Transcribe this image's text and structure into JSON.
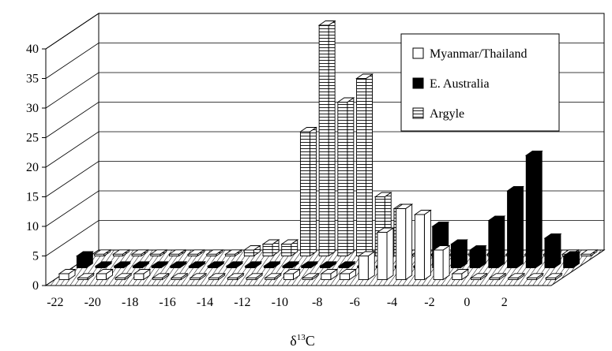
{
  "chart_data": {
    "type": "bar",
    "subtype": "3d-grouped-column",
    "categories": [
      "-22",
      "-21",
      "-20",
      "-19",
      "-18",
      "-17",
      "-16",
      "-15",
      "-14",
      "-13",
      "-12",
      "-11",
      "-10",
      "-9",
      "-8",
      "-7",
      "-6",
      "-5",
      "-4",
      "-3",
      "-2",
      "-1",
      "0",
      "1",
      "2",
      "3",
      "4"
    ],
    "x_tick_labels": [
      "-22",
      "-20",
      "-18",
      "-16",
      "-14",
      "-12",
      "-10",
      "-8",
      "-6",
      "-4",
      "-2",
      "0",
      "2"
    ],
    "series": [
      {
        "name": "Myanmar/Thailand",
        "pattern": "white",
        "values": [
          1,
          0,
          1,
          0,
          1,
          0,
          0,
          0,
          0,
          0,
          0,
          0,
          1,
          0,
          1,
          1,
          4,
          8,
          12,
          11,
          5,
          1,
          0,
          0,
          0,
          0,
          0
        ]
      },
      {
        "name": "E. Australia",
        "pattern": "black",
        "values": [
          2,
          0,
          0,
          0,
          0,
          0,
          0,
          0,
          0,
          0,
          0,
          0,
          0,
          0,
          0,
          0,
          0,
          0,
          0,
          7,
          4,
          3,
          8,
          13,
          19,
          5,
          2
        ]
      },
      {
        "name": "Argyle",
        "pattern": "horizontal-hatch",
        "values": [
          0,
          0,
          0,
          0,
          0,
          0,
          0,
          0,
          1,
          2,
          2,
          21,
          39,
          26,
          30,
          10,
          8,
          0,
          0,
          0,
          0,
          0,
          0,
          0,
          0,
          0,
          0
        ]
      }
    ],
    "yticks": [
      0,
      5,
      10,
      15,
      20,
      25,
      30,
      35,
      40
    ],
    "ylim": [
      0,
      40
    ],
    "xlabel": "δ13C",
    "xlabel_main": "δ",
    "xlabel_sup": "13",
    "xlabel_tail": "C",
    "ylabel": "",
    "title": "",
    "grid": true,
    "legend_position": "top-right"
  }
}
